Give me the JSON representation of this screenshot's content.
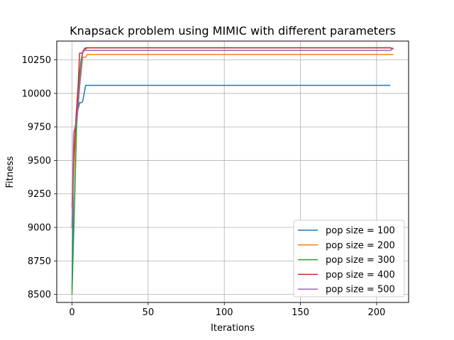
{
  "chart_data": {
    "type": "line",
    "title": "Knapsack problem using MIMIC with different parameters",
    "xlabel": "Iterations",
    "ylabel": "Fitness",
    "xlim": [
      -10,
      221
    ],
    "ylim": [
      8440,
      10390
    ],
    "xticks": [
      0,
      50,
      100,
      150,
      200
    ],
    "yticks": [
      8500,
      8750,
      9000,
      9250,
      9500,
      9750,
      10000,
      10250
    ],
    "grid": true,
    "legend_position": "lower right",
    "series": [
      {
        "name": "pop size = 100",
        "color": "#1f77b4",
        "points": [
          [
            0,
            8540
          ],
          [
            1,
            9300
          ],
          [
            2,
            9700
          ],
          [
            3,
            9880
          ],
          [
            4,
            9880
          ],
          [
            5,
            9930
          ],
          [
            6,
            9930
          ],
          [
            7,
            9940
          ],
          [
            8,
            10000
          ],
          [
            9,
            10060
          ],
          [
            209,
            10060
          ]
        ]
      },
      {
        "name": "pop size = 200",
        "color": "#ff7f0e",
        "points": [
          [
            0,
            8990
          ],
          [
            1,
            9350
          ],
          [
            2,
            9600
          ],
          [
            3,
            9750
          ],
          [
            4,
            9900
          ],
          [
            5,
            10050
          ],
          [
            6,
            10150
          ],
          [
            7,
            10270
          ],
          [
            8,
            10270
          ],
          [
            9,
            10270
          ],
          [
            10,
            10290
          ],
          [
            211,
            10290
          ]
        ]
      },
      {
        "name": "pop size = 300",
        "color": "#2ca02c",
        "points": [
          [
            0,
            8500
          ],
          [
            1,
            8900
          ],
          [
            2,
            9300
          ],
          [
            3,
            9750
          ],
          [
            4,
            10000
          ],
          [
            5,
            10150
          ],
          [
            6,
            10250
          ],
          [
            7,
            10310
          ],
          [
            8,
            10330
          ],
          [
            9,
            10330
          ],
          [
            10,
            10340
          ],
          [
            209,
            10340
          ],
          [
            211,
            10330
          ]
        ]
      },
      {
        "name": "pop size = 400",
        "color": "#d62728",
        "points": [
          [
            0,
            9150
          ],
          [
            1,
            9500
          ],
          [
            2,
            9700
          ],
          [
            3,
            9880
          ],
          [
            4,
            10050
          ],
          [
            5,
            10300
          ],
          [
            6,
            10300
          ],
          [
            7,
            10300
          ],
          [
            8,
            10330
          ],
          [
            9,
            10340
          ],
          [
            209,
            10340
          ],
          [
            211,
            10330
          ]
        ]
      },
      {
        "name": "pop size = 500",
        "color": "#9467bd",
        "points": [
          [
            0,
            9000
          ],
          [
            1,
            9700
          ],
          [
            2,
            9750
          ],
          [
            3,
            9800
          ],
          [
            4,
            9900
          ],
          [
            5,
            10050
          ],
          [
            6,
            10200
          ],
          [
            7,
            10300
          ],
          [
            8,
            10320
          ],
          [
            9,
            10320
          ],
          [
            209,
            10320
          ],
          [
            211,
            10340
          ]
        ]
      }
    ]
  }
}
